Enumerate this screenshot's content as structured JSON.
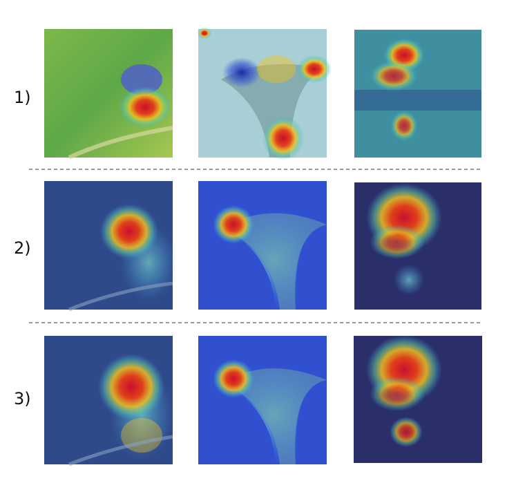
{
  "rows": [
    {
      "label": "1)"
    },
    {
      "label": "2)"
    },
    {
      "label": "3)"
    }
  ]
}
